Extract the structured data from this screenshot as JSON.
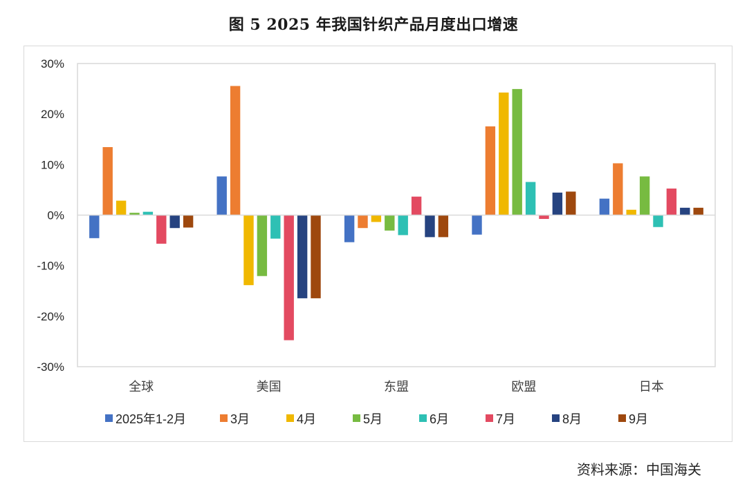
{
  "title": "图 5   2025 年我国针织产品月度出口增速",
  "source": "资料来源：中国海关",
  "colors": {
    "2025年1-2月": "#4472C4",
    "3月": "#ED7D31",
    "4月": "#F0B800",
    "5月": "#77BB41",
    "6月": "#2EC0B4",
    "7月": "#E34A61",
    "8月": "#264380",
    "9月": "#9E480E"
  },
  "chart_data": {
    "type": "bar",
    "title": "2025年我国针织产品月度出口增速",
    "xlabel": "",
    "ylabel": "",
    "ylim": [
      -30,
      30
    ],
    "yticks": [
      "30%",
      "20%",
      "10%",
      "0%",
      "-10%",
      "-20%",
      "-30%"
    ],
    "tick_values": [
      30,
      20,
      10,
      0,
      -10,
      -20,
      -30
    ],
    "grid": false,
    "legend_position": "bottom",
    "categories": [
      "全球",
      "美国",
      "东盟",
      "欧盟",
      "日本"
    ],
    "series": [
      {
        "name": "2025年1-2月",
        "color": "#4472C4",
        "values": [
          -4.6,
          7.7,
          -5.4,
          -3.9,
          3.3
        ]
      },
      {
        "name": "3月",
        "color": "#ED7D31",
        "values": [
          13.5,
          25.6,
          -2.6,
          17.6,
          10.3
        ]
      },
      {
        "name": "4月",
        "color": "#F0B800",
        "values": [
          2.9,
          -13.9,
          -1.4,
          24.3,
          1.1
        ]
      },
      {
        "name": "5月",
        "color": "#77BB41",
        "values": [
          0.5,
          -12.1,
          -3.1,
          25.0,
          7.7
        ]
      },
      {
        "name": "6月",
        "color": "#2EC0B4",
        "values": [
          0.7,
          -4.7,
          -4.0,
          6.6,
          -2.4
        ]
      },
      {
        "name": "7月",
        "color": "#E34A61",
        "values": [
          -5.7,
          -24.8,
          3.7,
          -0.8,
          5.3
        ]
      },
      {
        "name": "8月",
        "color": "#264380",
        "values": [
          -2.6,
          -16.5,
          -4.4,
          4.5,
          1.5
        ]
      },
      {
        "name": "9月",
        "color": "#9E480E",
        "values": [
          -2.5,
          -16.5,
          -4.4,
          4.7,
          1.5
        ]
      }
    ]
  }
}
